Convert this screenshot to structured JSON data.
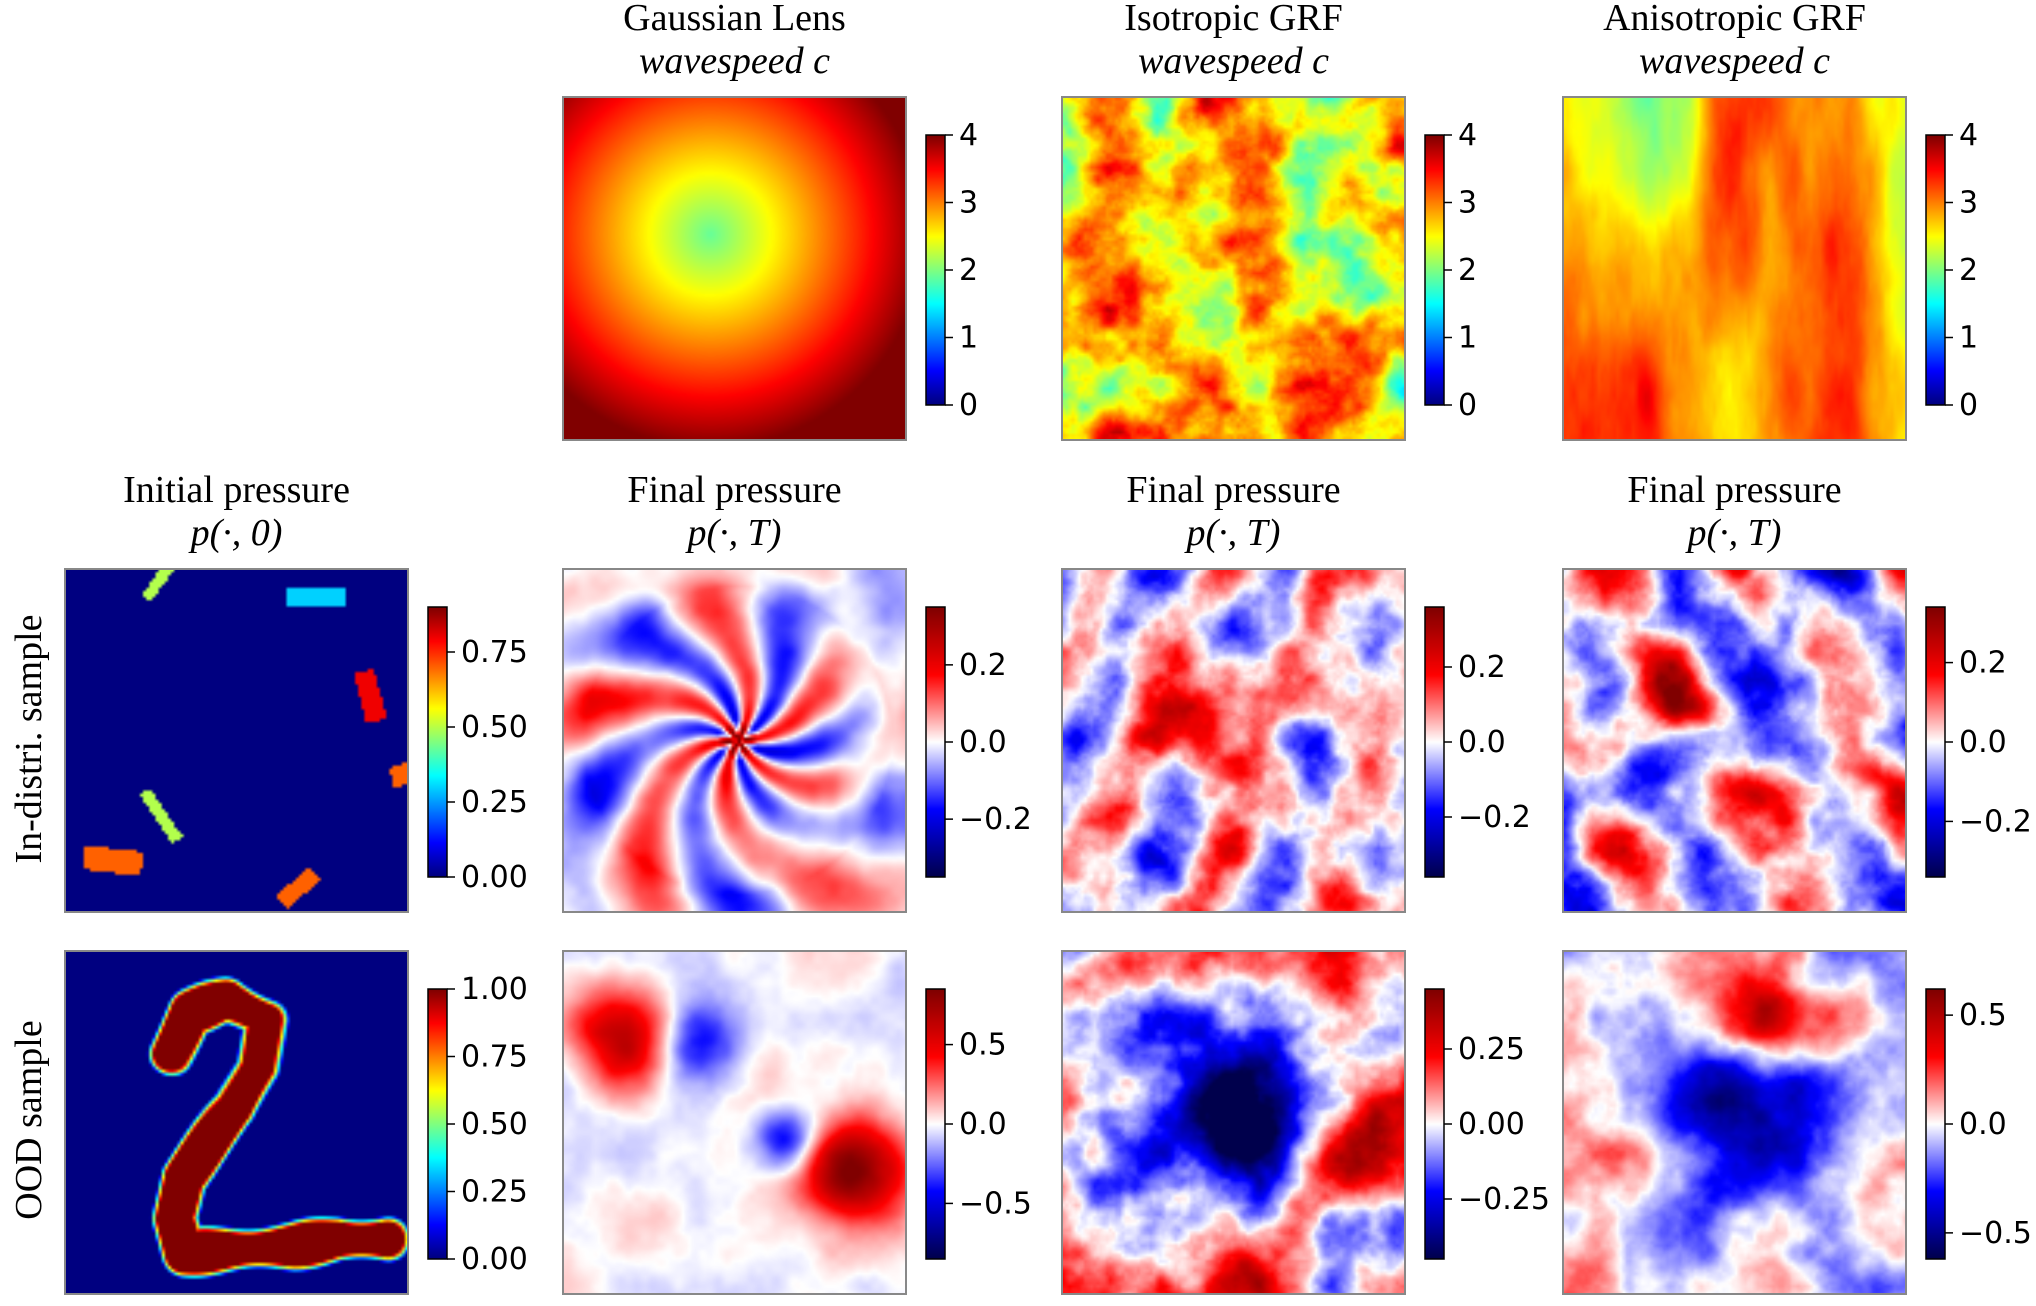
{
  "chart_data": {
    "type": "heatmap",
    "panels": [
      {
        "id": "gaussian-lens-wavespeed",
        "title": [
          "Gaussian Lens",
          "wavespeed c"
        ],
        "field": "lens",
        "colormap": "jet",
        "clim": [
          0,
          4
        ],
        "ticks": [
          "0",
          "1",
          "2",
          "3",
          "4"
        ],
        "tick_values": [
          0,
          1,
          2,
          3,
          4
        ]
      },
      {
        "id": "isotropic-grf-wavespeed",
        "title": [
          "Isotropic GRF",
          "wavespeed c"
        ],
        "field": "iso",
        "colormap": "jet",
        "clim": [
          0,
          4
        ],
        "ticks": [
          "0",
          "1",
          "2",
          "3",
          "4"
        ],
        "tick_values": [
          0,
          1,
          2,
          3,
          4
        ]
      },
      {
        "id": "anisotropic-grf-wavespeed",
        "title": [
          "Anisotropic GRF",
          "wavespeed c"
        ],
        "field": "aniso",
        "colormap": "jet",
        "clim": [
          0,
          4
        ],
        "ticks": [
          "0",
          "1",
          "2",
          "3",
          "4"
        ],
        "tick_values": [
          0,
          1,
          2,
          3,
          4
        ]
      },
      {
        "id": "indistri-initial-pressure",
        "title": [
          "Initial pressure",
          "p(·, 0)"
        ],
        "field": "rects",
        "colormap": "jet",
        "clim": [
          0,
          0.9
        ],
        "ticks": [
          "0.00",
          "0.25",
          "0.50",
          "0.75"
        ],
        "tick_values": [
          0,
          0.25,
          0.5,
          0.75
        ]
      },
      {
        "id": "indistri-final-lens",
        "title": [
          "Final pressure",
          "p(·, T)"
        ],
        "field": "star",
        "colormap": "seismic",
        "clim": [
          -0.35,
          0.35
        ],
        "ticks": [
          "−0.2",
          "0.0",
          "0.2"
        ],
        "tick_values": [
          -0.2,
          0,
          0.2
        ]
      },
      {
        "id": "indistri-final-iso",
        "title": [
          "Final pressure",
          "p(·, T)"
        ],
        "field": "turb1",
        "colormap": "seismic",
        "clim": [
          -0.36,
          0.36
        ],
        "ticks": [
          "−0.2",
          "0.0",
          "0.2"
        ],
        "tick_values": [
          -0.2,
          0,
          0.2
        ]
      },
      {
        "id": "indistri-final-aniso",
        "title": [
          "Final pressure",
          "p(·, T)"
        ],
        "field": "turb2",
        "colormap": "seismic",
        "clim": [
          -0.34,
          0.34
        ],
        "ticks": [
          "−0.2",
          "0.0",
          "0.2"
        ],
        "tick_values": [
          -0.2,
          0,
          0.2
        ]
      },
      {
        "id": "ood-initial-pressure",
        "title": [],
        "field": "digit",
        "colormap": "jet",
        "clim": [
          0,
          1.0
        ],
        "ticks": [
          "0.00",
          "0.25",
          "0.50",
          "0.75",
          "1.00"
        ],
        "tick_values": [
          0,
          0.25,
          0.5,
          0.75,
          1.0
        ]
      },
      {
        "id": "ood-final-lens",
        "title": [],
        "field": "oodlens",
        "colormap": "seismic",
        "clim": [
          -0.85,
          0.85
        ],
        "ticks": [
          "−0.5",
          "0.0",
          "0.5"
        ],
        "tick_values": [
          -0.5,
          0,
          0.5
        ]
      },
      {
        "id": "ood-final-iso",
        "title": [],
        "field": "oodiso",
        "colormap": "seismic",
        "clim": [
          -0.45,
          0.45
        ],
        "ticks": [
          "−0.25",
          "0.00",
          "0.25"
        ],
        "tick_values": [
          -0.25,
          0,
          0.25
        ]
      },
      {
        "id": "ood-final-aniso",
        "title": [],
        "field": "oodaniso",
        "colormap": "seismic",
        "clim": [
          -0.62,
          0.62
        ],
        "ticks": [
          "−0.5",
          "0.0",
          "0.5"
        ],
        "tick_values": [
          -0.5,
          0,
          0.5
        ]
      }
    ],
    "row_labels": [
      "In-distri. sample",
      "OOD sample"
    ]
  }
}
